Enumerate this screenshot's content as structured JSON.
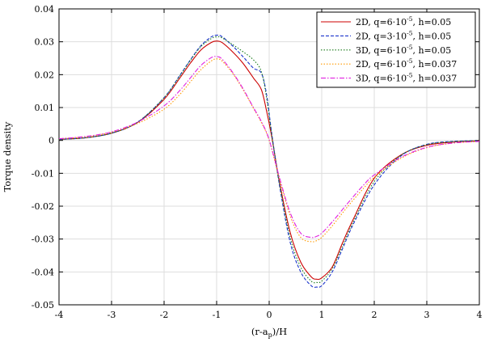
{
  "chart_data": {
    "type": "line",
    "xlabel": "(r-a",
    "xlabel_sub": "p",
    "xlabel_tail": ")/H",
    "ylabel": "Torque density",
    "xlim": [
      -4,
      4
    ],
    "ylim": [
      -0.05,
      0.04
    ],
    "grid": true,
    "legend_position": "top-right",
    "x_ticks": [
      -4,
      -3,
      -2,
      -1,
      0,
      1,
      2,
      3,
      4
    ],
    "x_tick_labels": [
      "-4",
      "-3",
      "-2",
      "-1",
      "0",
      "1",
      "2",
      "3",
      "4"
    ],
    "y_ticks": [
      -0.05,
      -0.04,
      -0.03,
      -0.02,
      -0.01,
      0,
      0.01,
      0.02,
      0.03,
      0.04
    ],
    "y_tick_labels": [
      "-0.05",
      "-0.04",
      "-0.03",
      "-0.02",
      "-0.01",
      "0",
      "0.01",
      "0.02",
      "0.03",
      "0.04"
    ],
    "series": [
      {
        "name": "2D, q=6·10-5, h=0.05",
        "legend": {
          "prefix": "2D, q=6·10",
          "sup": "-5",
          "suffix": ", h=0.05"
        },
        "color": "#cc0000",
        "dash": "",
        "x": [
          -4,
          -3.5,
          -3,
          -2.5,
          -2,
          -1.7,
          -1.5,
          -1.3,
          -1.1,
          -1.0,
          -0.9,
          -0.7,
          -0.5,
          -0.3,
          -0.15,
          -0.05,
          0.05,
          0.2,
          0.4,
          0.6,
          0.8,
          0.9,
          1.0,
          1.2,
          1.4,
          1.6,
          2.0,
          2.5,
          3.0,
          3.5,
          4.0
        ],
        "y": [
          0.0003,
          0.0008,
          0.0022,
          0.0055,
          0.0125,
          0.019,
          0.0235,
          0.0275,
          0.0298,
          0.0302,
          0.0298,
          0.027,
          0.0235,
          0.019,
          0.0155,
          0.009,
          0.001,
          -0.013,
          -0.028,
          -0.037,
          -0.0415,
          -0.0422,
          -0.0418,
          -0.0385,
          -0.031,
          -0.024,
          -0.0115,
          -0.0045,
          -0.0015,
          -0.0005,
          -0.0001
        ]
      },
      {
        "name": "2D, q=3·10-5, h=0.05",
        "legend": {
          "prefix": "2D, q=3·10",
          "sup": "-5",
          "suffix": ", h=0.05"
        },
        "color": "#1a33cc",
        "dash": "4,2",
        "x": [
          -4,
          -3.5,
          -3,
          -2.5,
          -2,
          -1.7,
          -1.5,
          -1.3,
          -1.1,
          -1.0,
          -0.9,
          -0.7,
          -0.5,
          -0.3,
          -0.15,
          -0.05,
          0.05,
          0.2,
          0.4,
          0.6,
          0.8,
          0.9,
          1.0,
          1.2,
          1.4,
          1.6,
          2.0,
          2.5,
          3.0,
          3.5,
          4.0
        ],
        "y": [
          0.0003,
          0.0008,
          0.0022,
          0.0056,
          0.013,
          0.0198,
          0.0245,
          0.0288,
          0.0315,
          0.032,
          0.0316,
          0.0288,
          0.0255,
          0.022,
          0.0205,
          0.014,
          0.002,
          -0.014,
          -0.031,
          -0.04,
          -0.0442,
          -0.0446,
          -0.0442,
          -0.04,
          -0.0328,
          -0.0255,
          -0.0135,
          -0.0048,
          -0.0012,
          -0.0003,
          -0.0001
        ]
      },
      {
        "name": "3D, q=6·10-5, h=0.05",
        "legend": {
          "prefix": "3D, q=6·10",
          "sup": "-5",
          "suffix": ", h=0.05"
        },
        "color": "#1a7a1a",
        "dash": "1.5,2",
        "x": [
          -4,
          -3.5,
          -3,
          -2.5,
          -2,
          -1.7,
          -1.5,
          -1.3,
          -1.1,
          -1.0,
          -0.9,
          -0.7,
          -0.5,
          -0.3,
          -0.15,
          -0.05,
          0.05,
          0.2,
          0.4,
          0.6,
          0.8,
          0.9,
          1.0,
          1.2,
          1.4,
          1.6,
          2.0,
          2.5,
          3.0,
          3.5,
          4.0
        ],
        "y": [
          0.0003,
          0.0008,
          0.0022,
          0.0056,
          0.013,
          0.0196,
          0.0243,
          0.0285,
          0.031,
          0.0315,
          0.0312,
          0.0292,
          0.027,
          0.0245,
          0.021,
          0.013,
          0.0015,
          -0.0135,
          -0.0295,
          -0.0385,
          -0.0428,
          -0.0432,
          -0.0428,
          -0.039,
          -0.032,
          -0.0248,
          -0.0125,
          -0.0046,
          -0.0013,
          -0.0004,
          -0.0001
        ]
      },
      {
        "name": "2D, q=6·10-5, h=0.037",
        "legend": {
          "prefix": "2D, q=6·10",
          "sup": "-5",
          "suffix": ", h=0.037"
        },
        "color": "#ff9900",
        "dash": "1.5,2",
        "x": [
          -4,
          -3.5,
          -3,
          -2.5,
          -2,
          -1.7,
          -1.5,
          -1.3,
          -1.1,
          -1.0,
          -0.9,
          -0.7,
          -0.5,
          -0.3,
          -0.15,
          0.0,
          0.2,
          0.4,
          0.6,
          0.8,
          0.9,
          1.0,
          1.2,
          1.5,
          1.8,
          2.0,
          2.5,
          3.0,
          3.5,
          4.0
        ],
        "y": [
          0.0005,
          0.0011,
          0.0025,
          0.0052,
          0.0095,
          0.014,
          0.0178,
          0.0215,
          0.0242,
          0.0248,
          0.0242,
          0.0205,
          0.0155,
          0.0098,
          0.0055,
          0.0,
          -0.012,
          -0.023,
          -0.0295,
          -0.0308,
          -0.0305,
          -0.0295,
          -0.026,
          -0.02,
          -0.0145,
          -0.0112,
          -0.0055,
          -0.0022,
          -0.0008,
          -0.0003
        ]
      },
      {
        "name": "3D, q=6·10-5, h=0.037",
        "legend": {
          "prefix": "3D, q=6·10",
          "sup": "-5",
          "suffix": ", h=0.037"
        },
        "color": "#e020e0",
        "dash": "6,2,1.5,2",
        "x": [
          -4,
          -3.5,
          -3,
          -2.5,
          -2,
          -1.7,
          -1.5,
          -1.3,
          -1.1,
          -1.0,
          -0.9,
          -0.7,
          -0.5,
          -0.3,
          -0.15,
          0.0,
          0.2,
          0.4,
          0.6,
          0.8,
          0.9,
          1.0,
          1.2,
          1.5,
          1.8,
          2.0,
          2.5,
          3.0,
          3.5,
          4.0
        ],
        "y": [
          0.0005,
          0.0012,
          0.0026,
          0.0056,
          0.0105,
          0.0152,
          0.019,
          0.0228,
          0.0252,
          0.0255,
          0.0248,
          0.0208,
          0.0158,
          0.01,
          0.0058,
          0.0002,
          -0.0115,
          -0.022,
          -0.0282,
          -0.0295,
          -0.0292,
          -0.0282,
          -0.0248,
          -0.019,
          -0.0135,
          -0.0105,
          -0.0052,
          -0.0021,
          -0.0008,
          -0.0003
        ]
      }
    ]
  }
}
